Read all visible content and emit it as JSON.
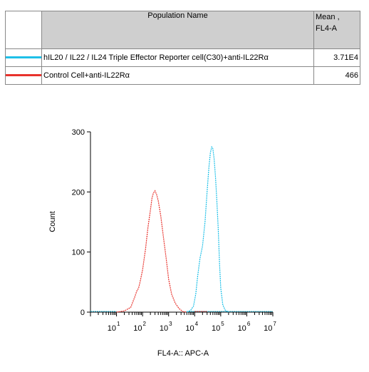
{
  "legend": {
    "header_name": "Population Name",
    "header_mean_line1": "Mean ,",
    "header_mean_line2": "FL4-A",
    "rows": [
      {
        "name": "hIL20 / IL22 / IL24 Triple Effector Reporter cell(C30)+anti-IL22Rα",
        "mean": "3.71E4",
        "color": "#1ec0e8"
      },
      {
        "name": "Control Cell+anti-IL22Rα",
        "mean": "466",
        "color": "#e8322c"
      }
    ]
  },
  "chart_data": {
    "type": "line",
    "xlabel": "FL4-A:: APC-A",
    "ylabel": "Count",
    "xscale": "log",
    "xlim": [
      1,
      10000000
    ],
    "ylim": [
      0,
      300
    ],
    "yticks": [
      0,
      100,
      200,
      300
    ],
    "xticks": [
      {
        "base": "10",
        "exp": "1"
      },
      {
        "base": "10",
        "exp": "2"
      },
      {
        "base": "10",
        "exp": "3"
      },
      {
        "base": "10",
        "exp": "4"
      },
      {
        "base": "10",
        "exp": "5"
      },
      {
        "base": "10",
        "exp": "6"
      },
      {
        "base": "10",
        "exp": "7"
      }
    ],
    "series": [
      {
        "name": "Control Cell+anti-IL22Rα",
        "color": "#e8322c",
        "x": [
          10,
          20,
          35,
          50,
          60,
          70,
          80,
          100,
          130,
          160,
          200,
          230,
          260,
          300,
          350,
          400,
          500,
          630,
          800,
          1000,
          1300,
          1800,
          2500,
          3500,
          5000
        ],
        "y": [
          0,
          2,
          8,
          25,
          35,
          40,
          50,
          70,
          105,
          140,
          170,
          190,
          198,
          202,
          195,
          185,
          160,
          125,
          90,
          55,
          30,
          15,
          6,
          1,
          0
        ]
      },
      {
        "name": "hIL20 / IL22 / IL24 Triple Effector Reporter cell(C30)+anti-IL22Rα",
        "color": "#1ec0e8",
        "x": [
          5000,
          7000,
          9000,
          11000,
          13000,
          16000,
          20000,
          25000,
          30000,
          35000,
          40000,
          45000,
          50000,
          56000,
          63000,
          70000,
          80000,
          90000,
          100000,
          120000,
          150000,
          200000
        ],
        "y": [
          0,
          3,
          10,
          30,
          60,
          90,
          110,
          150,
          200,
          240,
          265,
          275,
          272,
          255,
          225,
          190,
          140,
          80,
          40,
          12,
          3,
          0
        ]
      }
    ]
  }
}
